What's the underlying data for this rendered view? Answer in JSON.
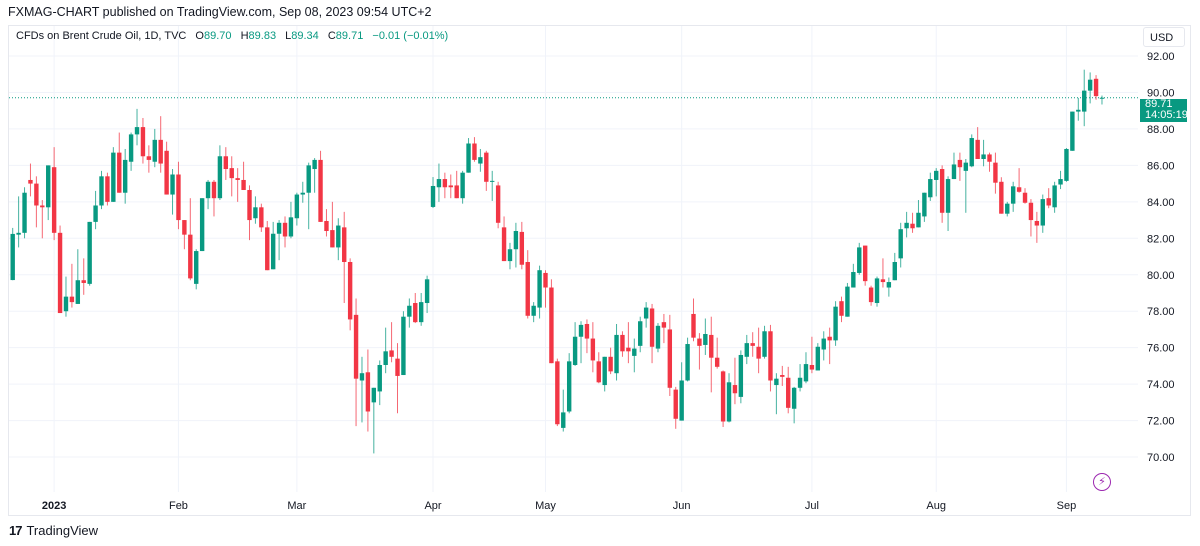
{
  "header": {
    "published": "FXMAG-CHART published on TradingView.com, Sep 08, 2023 09:54 UTC+2"
  },
  "legend": {
    "symbol": "CFDs on Brent Crude Oil, 1D, TVC",
    "open_label": "O",
    "open": "89.70",
    "high_label": "H",
    "high": "89.83",
    "low_label": "L",
    "low": "89.34",
    "close_label": "C",
    "close": "89.71",
    "change": "−0.01 (−0.01%)"
  },
  "price_axis": {
    "currency": "USD"
  },
  "last_price": {
    "value": "89.71",
    "countdown": "14:05:19"
  },
  "footer": {
    "brand": "TradingView"
  },
  "colors": {
    "up": "#089981",
    "down": "#f23645",
    "accent": "#9c27b0"
  },
  "icons": {
    "logo": "tradingview-logo-icon",
    "bolt": "lightning-icon"
  },
  "chart_data": {
    "type": "candlestick",
    "title": "CFDs on Brent Crude Oil, 1D, TVC",
    "ylim": [
      68.8,
      93.2
    ],
    "grid": true,
    "y_ticks": [
      "92.00",
      "90.00",
      "88.00",
      "86.00",
      "84.00",
      "82.00",
      "80.00",
      "78.00",
      "76.00",
      "74.00",
      "72.00",
      "70.00"
    ],
    "x_ticks": [
      {
        "label": "2023",
        "bar": 7
      },
      {
        "label": "Feb",
        "bar": 28
      },
      {
        "label": "Mar",
        "bar": 48
      },
      {
        "label": "Apr",
        "bar": 71
      },
      {
        "label": "May",
        "bar": 90
      },
      {
        "label": "Jun",
        "bar": 113
      },
      {
        "label": "Jul",
        "bar": 135
      },
      {
        "label": "Aug",
        "bar": 156
      },
      {
        "label": "Sep",
        "bar": 178
      }
    ],
    "ohlc_fields": [
      "open",
      "high",
      "low",
      "close"
    ],
    "candles": [
      [
        79.71,
        82.57,
        79.7,
        82.24
      ],
      [
        82.2,
        84.3,
        81.5,
        82.3
      ],
      [
        82.3,
        84.8,
        82.0,
        84.5
      ],
      [
        85.2,
        86.1,
        84.3,
        85.0
      ],
      [
        85.0,
        85.4,
        82.6,
        83.8
      ],
      [
        83.8,
        84.1,
        82.0,
        83.7
      ],
      [
        83.7,
        86.0,
        83.0,
        86.0
      ],
      [
        85.9,
        87.0,
        81.9,
        82.3
      ],
      [
        82.3,
        82.7,
        77.9,
        77.9
      ],
      [
        78.0,
        79.9,
        77.7,
        78.8
      ],
      [
        78.8,
        80.6,
        78.2,
        78.5
      ],
      [
        78.4,
        81.4,
        78.4,
        79.7
      ],
      [
        79.7,
        80.9,
        78.9,
        79.55
      ],
      [
        79.5,
        82.9,
        79.4,
        82.9
      ],
      [
        82.9,
        84.6,
        82.5,
        83.8
      ],
      [
        83.8,
        85.7,
        83.6,
        85.4
      ],
      [
        85.4,
        85.6,
        83.8,
        84.0
      ],
      [
        84.0,
        87.0,
        84.0,
        86.7
      ],
      [
        86.7,
        87.8,
        84.5,
        84.5
      ],
      [
        84.5,
        86.9,
        83.9,
        86.3
      ],
      [
        86.2,
        87.8,
        85.7,
        87.7
      ],
      [
        87.7,
        89.1,
        87.1,
        88.1
      ],
      [
        88.1,
        88.6,
        86.1,
        86.5
      ],
      [
        86.5,
        87.1,
        85.6,
        86.3
      ],
      [
        86.2,
        88.0,
        85.9,
        87.4
      ],
      [
        87.4,
        88.7,
        85.6,
        86.1
      ],
      [
        86.8,
        87.3,
        84.4,
        84.4
      ],
      [
        84.4,
        85.8,
        83.3,
        85.5
      ],
      [
        85.5,
        86.2,
        82.5,
        83.0
      ],
      [
        83.0,
        83.0,
        81.4,
        82.2
      ],
      [
        82.2,
        84.2,
        79.7,
        79.8
      ],
      [
        79.5,
        81.4,
        79.2,
        81.3
      ],
      [
        81.3,
        84.2,
        81.3,
        84.2
      ],
      [
        84.2,
        85.2,
        83.6,
        85.1
      ],
      [
        85.1,
        85.2,
        83.2,
        84.2
      ],
      [
        84.2,
        87.1,
        84.1,
        86.5
      ],
      [
        86.5,
        87.0,
        85.2,
        85.8
      ],
      [
        85.85,
        86.5,
        84.3,
        85.3
      ],
      [
        85.3,
        85.85,
        84.0,
        85.2
      ],
      [
        85.2,
        86.2,
        84.65,
        84.65
      ],
      [
        84.65,
        84.9,
        81.9,
        83.0
      ],
      [
        83.1,
        84.3,
        82.8,
        83.7
      ],
      [
        83.7,
        83.9,
        82.35,
        82.6
      ],
      [
        82.6,
        82.95,
        80.25,
        80.25
      ],
      [
        80.3,
        82.9,
        80.3,
        82.25
      ],
      [
        82.25,
        83.0,
        80.8,
        82.85
      ],
      [
        82.85,
        83.2,
        81.5,
        82.1
      ],
      [
        82.1,
        84.0,
        82.0,
        83.15
      ],
      [
        83.1,
        84.5,
        82.7,
        84.4
      ],
      [
        84.4,
        85.1,
        83.95,
        84.5
      ],
      [
        84.5,
        86.15,
        82.5,
        86.0
      ],
      [
        85.8,
        86.4,
        84.5,
        86.3
      ],
      [
        86.3,
        86.8,
        82.9,
        82.9
      ],
      [
        82.95,
        83.6,
        82.1,
        82.4
      ],
      [
        82.45,
        84.0,
        81.5,
        81.5
      ],
      [
        81.5,
        83.1,
        80.8,
        82.7
      ],
      [
        82.6,
        83.45,
        78.45,
        80.7
      ],
      [
        80.7,
        80.9,
        76.95,
        77.55
      ],
      [
        77.8,
        78.7,
        71.7,
        74.3
      ],
      [
        74.2,
        75.5,
        71.9,
        74.6
      ],
      [
        74.65,
        75.9,
        71.4,
        72.5
      ],
      [
        73.0,
        73.8,
        70.2,
        73.8
      ],
      [
        73.6,
        75.3,
        72.85,
        75.05
      ],
      [
        75.05,
        77.1,
        74.6,
        75.8
      ],
      [
        75.85,
        77.4,
        75.2,
        75.5
      ],
      [
        75.4,
        76.25,
        72.4,
        74.45
      ],
      [
        74.5,
        78.0,
        74.5,
        77.7
      ],
      [
        77.7,
        78.7,
        77.1,
        78.3
      ],
      [
        78.45,
        79.0,
        77.35,
        77.4
      ],
      [
        77.4,
        79.0,
        77.2,
        78.5
      ],
      [
        78.45,
        79.95,
        77.9,
        79.75
      ],
      [
        83.72,
        85.36,
        83.66,
        84.87
      ],
      [
        84.8,
        86.1,
        84.0,
        85.25
      ],
      [
        85.25,
        85.6,
        84.2,
        84.8
      ],
      [
        84.9,
        85.5,
        84.2,
        84.8
      ],
      [
        84.9,
        85.7,
        84.2,
        84.2
      ],
      [
        84.2,
        85.7,
        83.9,
        85.6
      ],
      [
        85.6,
        87.5,
        85.6,
        87.2
      ],
      [
        87.2,
        87.55,
        86.2,
        86.3
      ],
      [
        86.1,
        86.9,
        85.65,
        86.45
      ],
      [
        86.7,
        86.8,
        84.6,
        85.1
      ],
      [
        85.1,
        85.7,
        84.05,
        85.15
      ],
      [
        84.9,
        85.1,
        82.55,
        82.85
      ],
      [
        82.6,
        83.2,
        80.75,
        80.75
      ],
      [
        80.75,
        81.75,
        80.3,
        81.4
      ],
      [
        81.4,
        82.85,
        80.4,
        82.4
      ],
      [
        82.35,
        82.9,
        80.3,
        80.55
      ],
      [
        80.7,
        81.35,
        77.6,
        77.75
      ],
      [
        77.75,
        78.5,
        77.4,
        78.3
      ],
      [
        78.2,
        80.5,
        77.6,
        80.25
      ],
      [
        80.1,
        80.25,
        78.2,
        79.3
      ],
      [
        79.3,
        79.75,
        75.15,
        75.15
      ],
      [
        75.25,
        75.4,
        71.7,
        71.8
      ],
      [
        71.6,
        73.7,
        71.4,
        72.45
      ],
      [
        72.5,
        75.7,
        72.4,
        75.25
      ],
      [
        75.05,
        77.4,
        75.0,
        76.6
      ],
      [
        76.6,
        77.45,
        75.15,
        77.25
      ],
      [
        77.3,
        77.55,
        75.7,
        76.5
      ],
      [
        76.5,
        77.4,
        74.65,
        75.3
      ],
      [
        75.25,
        75.75,
        74.05,
        74.1
      ],
      [
        73.95,
        75.5,
        73.6,
        75.5
      ],
      [
        75.5,
        76.0,
        74.55,
        74.7
      ],
      [
        74.6,
        77.3,
        74.2,
        76.7
      ],
      [
        76.7,
        76.9,
        75.5,
        75.8
      ],
      [
        76.0,
        77.4,
        75.15,
        75.8
      ],
      [
        75.55,
        76.5,
        74.65,
        75.95
      ],
      [
        76.1,
        77.7,
        75.75,
        77.45
      ],
      [
        77.6,
        78.5,
        77.1,
        78.2
      ],
      [
        78.15,
        78.4,
        75.15,
        76.05
      ],
      [
        75.95,
        77.35,
        75.75,
        77.2
      ],
      [
        77.4,
        77.85,
        76.25,
        77.1
      ],
      [
        77.0,
        77.8,
        73.35,
        73.8
      ],
      [
        73.7,
        73.85,
        71.55,
        72.1
      ],
      [
        72.0,
        75.2,
        72.0,
        74.2
      ],
      [
        74.2,
        76.55,
        74.15,
        76.2
      ],
      [
        77.85,
        78.7,
        76.35,
        76.55
      ],
      [
        76.5,
        76.8,
        74.8,
        76.1
      ],
      [
        76.15,
        77.6,
        75.6,
        76.75
      ],
      [
        76.7,
        77.7,
        73.55,
        75.45
      ],
      [
        75.45,
        76.55,
        74.85,
        74.95
      ],
      [
        74.7,
        74.75,
        71.65,
        71.95
      ],
      [
        71.95,
        74.6,
        71.9,
        74.1
      ],
      [
        73.95,
        75.45,
        72.9,
        73.5
      ],
      [
        73.3,
        75.85,
        72.95,
        75.6
      ],
      [
        75.5,
        76.7,
        75.1,
        76.25
      ],
      [
        76.25,
        76.85,
        75.5,
        76.1
      ],
      [
        76.05,
        77.1,
        74.6,
        75.4
      ],
      [
        75.5,
        77.2,
        75.4,
        76.9
      ],
      [
        76.9,
        77.25,
        73.6,
        74.2
      ],
      [
        73.95,
        74.6,
        72.35,
        74.3
      ],
      [
        74.5,
        75.0,
        73.9,
        74.4
      ],
      [
        74.35,
        74.95,
        72.4,
        72.7
      ],
      [
        72.65,
        73.85,
        71.85,
        73.8
      ],
      [
        73.8,
        75.1,
        73.6,
        74.35
      ],
      [
        74.15,
        75.75,
        74.05,
        75.1
      ],
      [
        75.05,
        76.6,
        74.6,
        74.8
      ],
      [
        74.75,
        76.25,
        74.75,
        76.05
      ],
      [
        75.9,
        76.9,
        75.3,
        76.5
      ],
      [
        76.6,
        77.1,
        75.1,
        76.4
      ],
      [
        76.4,
        78.55,
        76.1,
        78.25
      ],
      [
        78.55,
        78.8,
        77.4,
        77.75
      ],
      [
        77.7,
        79.55,
        77.7,
        79.35
      ],
      [
        79.3,
        80.6,
        79.3,
        80.15
      ],
      [
        80.1,
        81.75,
        80.0,
        81.5
      ],
      [
        81.6,
        81.6,
        79.4,
        79.65
      ],
      [
        79.3,
        79.4,
        78.3,
        78.5
      ],
      [
        78.45,
        79.9,
        78.25,
        79.8
      ],
      [
        79.75,
        80.9,
        79.3,
        79.6
      ],
      [
        79.3,
        79.85,
        78.8,
        79.6
      ],
      [
        79.7,
        81.2,
        79.7,
        80.7
      ],
      [
        80.9,
        82.85,
        80.4,
        82.5
      ],
      [
        82.55,
        83.45,
        82.05,
        82.85
      ],
      [
        82.8,
        83.4,
        82.3,
        82.55
      ],
      [
        82.6,
        84.1,
        82.6,
        83.4
      ],
      [
        83.2,
        84.5,
        82.9,
        84.5
      ],
      [
        84.25,
        85.6,
        84.05,
        85.25
      ],
      [
        85.2,
        85.85,
        84.3,
        85.7
      ],
      [
        85.8,
        86.0,
        82.85,
        83.4
      ],
      [
        83.4,
        85.4,
        82.4,
        85.25
      ],
      [
        85.25,
        86.7,
        85.25,
        86.05
      ],
      [
        86.3,
        86.7,
        85.15,
        85.9
      ],
      [
        85.7,
        86.35,
        83.4,
        86.15
      ],
      [
        85.95,
        87.7,
        85.9,
        87.5
      ],
      [
        87.4,
        88.1,
        86.35,
        86.35
      ],
      [
        86.35,
        87.4,
        85.95,
        86.6
      ],
      [
        86.6,
        86.7,
        85.65,
        86.2
      ],
      [
        86.15,
        86.7,
        84.45,
        85.05
      ],
      [
        85.1,
        85.35,
        83.35,
        83.35
      ],
      [
        83.35,
        84.0,
        83.2,
        83.9
      ],
      [
        83.9,
        85.1,
        83.45,
        84.85
      ],
      [
        84.8,
        85.85,
        84.5,
        84.55
      ],
      [
        84.5,
        84.75,
        83.9,
        83.95
      ],
      [
        83.95,
        84.15,
        82.1,
        83.0
      ],
      [
        82.95,
        83.45,
        81.75,
        82.7
      ],
      [
        82.7,
        84.4,
        82.3,
        84.15
      ],
      [
        84.2,
        84.75,
        83.65,
        83.8
      ],
      [
        83.7,
        85.1,
        83.4,
        84.9
      ],
      [
        84.95,
        85.7,
        84.7,
        85.25
      ],
      [
        85.15,
        86.95,
        85.1,
        86.9
      ],
      [
        86.8,
        88.95,
        86.8,
        88.95
      ],
      [
        88.95,
        89.7,
        88.45,
        89.05
      ],
      [
        88.95,
        91.25,
        88.15,
        90.1
      ],
      [
        90.1,
        91.1,
        89.4,
        90.7
      ],
      [
        90.75,
        90.95,
        89.6,
        89.8
      ],
      [
        89.7,
        89.83,
        89.34,
        89.71
      ]
    ],
    "last_close": 89.71
  }
}
